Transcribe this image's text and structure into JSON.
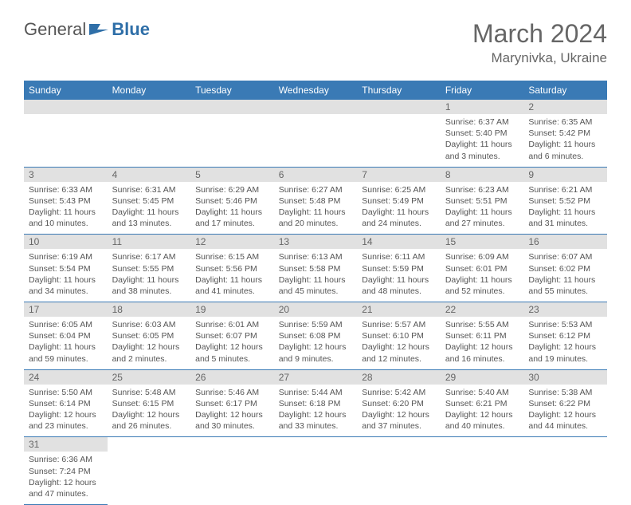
{
  "logo": {
    "text_general": "General",
    "text_blue": "Blue"
  },
  "title": "March 2024",
  "location": "Marynivka, Ukraine",
  "columns": [
    "Sunday",
    "Monday",
    "Tuesday",
    "Wednesday",
    "Thursday",
    "Friday",
    "Saturday"
  ],
  "colors": {
    "header_bg": "#3a7ab5",
    "header_text": "#ffffff",
    "daynum_bg": "#e1e1e1",
    "border": "#3a7ab5",
    "body_text": "#555555",
    "title_text": "#666666"
  },
  "weeks": [
    [
      {
        "empty": true
      },
      {
        "empty": true
      },
      {
        "empty": true
      },
      {
        "empty": true
      },
      {
        "empty": true
      },
      {
        "num": "1",
        "sunrise": "6:37 AM",
        "sunset": "5:40 PM",
        "daylight": "11 hours and 3 minutes."
      },
      {
        "num": "2",
        "sunrise": "6:35 AM",
        "sunset": "5:42 PM",
        "daylight": "11 hours and 6 minutes."
      }
    ],
    [
      {
        "num": "3",
        "sunrise": "6:33 AM",
        "sunset": "5:43 PM",
        "daylight": "11 hours and 10 minutes."
      },
      {
        "num": "4",
        "sunrise": "6:31 AM",
        "sunset": "5:45 PM",
        "daylight": "11 hours and 13 minutes."
      },
      {
        "num": "5",
        "sunrise": "6:29 AM",
        "sunset": "5:46 PM",
        "daylight": "11 hours and 17 minutes."
      },
      {
        "num": "6",
        "sunrise": "6:27 AM",
        "sunset": "5:48 PM",
        "daylight": "11 hours and 20 minutes."
      },
      {
        "num": "7",
        "sunrise": "6:25 AM",
        "sunset": "5:49 PM",
        "daylight": "11 hours and 24 minutes."
      },
      {
        "num": "8",
        "sunrise": "6:23 AM",
        "sunset": "5:51 PM",
        "daylight": "11 hours and 27 minutes."
      },
      {
        "num": "9",
        "sunrise": "6:21 AM",
        "sunset": "5:52 PM",
        "daylight": "11 hours and 31 minutes."
      }
    ],
    [
      {
        "num": "10",
        "sunrise": "6:19 AM",
        "sunset": "5:54 PM",
        "daylight": "11 hours and 34 minutes."
      },
      {
        "num": "11",
        "sunrise": "6:17 AM",
        "sunset": "5:55 PM",
        "daylight": "11 hours and 38 minutes."
      },
      {
        "num": "12",
        "sunrise": "6:15 AM",
        "sunset": "5:56 PM",
        "daylight": "11 hours and 41 minutes."
      },
      {
        "num": "13",
        "sunrise": "6:13 AM",
        "sunset": "5:58 PM",
        "daylight": "11 hours and 45 minutes."
      },
      {
        "num": "14",
        "sunrise": "6:11 AM",
        "sunset": "5:59 PM",
        "daylight": "11 hours and 48 minutes."
      },
      {
        "num": "15",
        "sunrise": "6:09 AM",
        "sunset": "6:01 PM",
        "daylight": "11 hours and 52 minutes."
      },
      {
        "num": "16",
        "sunrise": "6:07 AM",
        "sunset": "6:02 PM",
        "daylight": "11 hours and 55 minutes."
      }
    ],
    [
      {
        "num": "17",
        "sunrise": "6:05 AM",
        "sunset": "6:04 PM",
        "daylight": "11 hours and 59 minutes."
      },
      {
        "num": "18",
        "sunrise": "6:03 AM",
        "sunset": "6:05 PM",
        "daylight": "12 hours and 2 minutes."
      },
      {
        "num": "19",
        "sunrise": "6:01 AM",
        "sunset": "6:07 PM",
        "daylight": "12 hours and 5 minutes."
      },
      {
        "num": "20",
        "sunrise": "5:59 AM",
        "sunset": "6:08 PM",
        "daylight": "12 hours and 9 minutes."
      },
      {
        "num": "21",
        "sunrise": "5:57 AM",
        "sunset": "6:10 PM",
        "daylight": "12 hours and 12 minutes."
      },
      {
        "num": "22",
        "sunrise": "5:55 AM",
        "sunset": "6:11 PM",
        "daylight": "12 hours and 16 minutes."
      },
      {
        "num": "23",
        "sunrise": "5:53 AM",
        "sunset": "6:12 PM",
        "daylight": "12 hours and 19 minutes."
      }
    ],
    [
      {
        "num": "24",
        "sunrise": "5:50 AM",
        "sunset": "6:14 PM",
        "daylight": "12 hours and 23 minutes."
      },
      {
        "num": "25",
        "sunrise": "5:48 AM",
        "sunset": "6:15 PM",
        "daylight": "12 hours and 26 minutes."
      },
      {
        "num": "26",
        "sunrise": "5:46 AM",
        "sunset": "6:17 PM",
        "daylight": "12 hours and 30 minutes."
      },
      {
        "num": "27",
        "sunrise": "5:44 AM",
        "sunset": "6:18 PM",
        "daylight": "12 hours and 33 minutes."
      },
      {
        "num": "28",
        "sunrise": "5:42 AM",
        "sunset": "6:20 PM",
        "daylight": "12 hours and 37 minutes."
      },
      {
        "num": "29",
        "sunrise": "5:40 AM",
        "sunset": "6:21 PM",
        "daylight": "12 hours and 40 minutes."
      },
      {
        "num": "30",
        "sunrise": "5:38 AM",
        "sunset": "6:22 PM",
        "daylight": "12 hours and 44 minutes."
      }
    ],
    [
      {
        "num": "31",
        "sunrise": "6:36 AM",
        "sunset": "7:24 PM",
        "daylight": "12 hours and 47 minutes."
      },
      {
        "blank": true
      },
      {
        "blank": true
      },
      {
        "blank": true
      },
      {
        "blank": true
      },
      {
        "blank": true
      },
      {
        "blank": true
      }
    ]
  ],
  "labels": {
    "sunrise_prefix": "Sunrise: ",
    "sunset_prefix": "Sunset: ",
    "daylight_prefix": "Daylight: "
  }
}
